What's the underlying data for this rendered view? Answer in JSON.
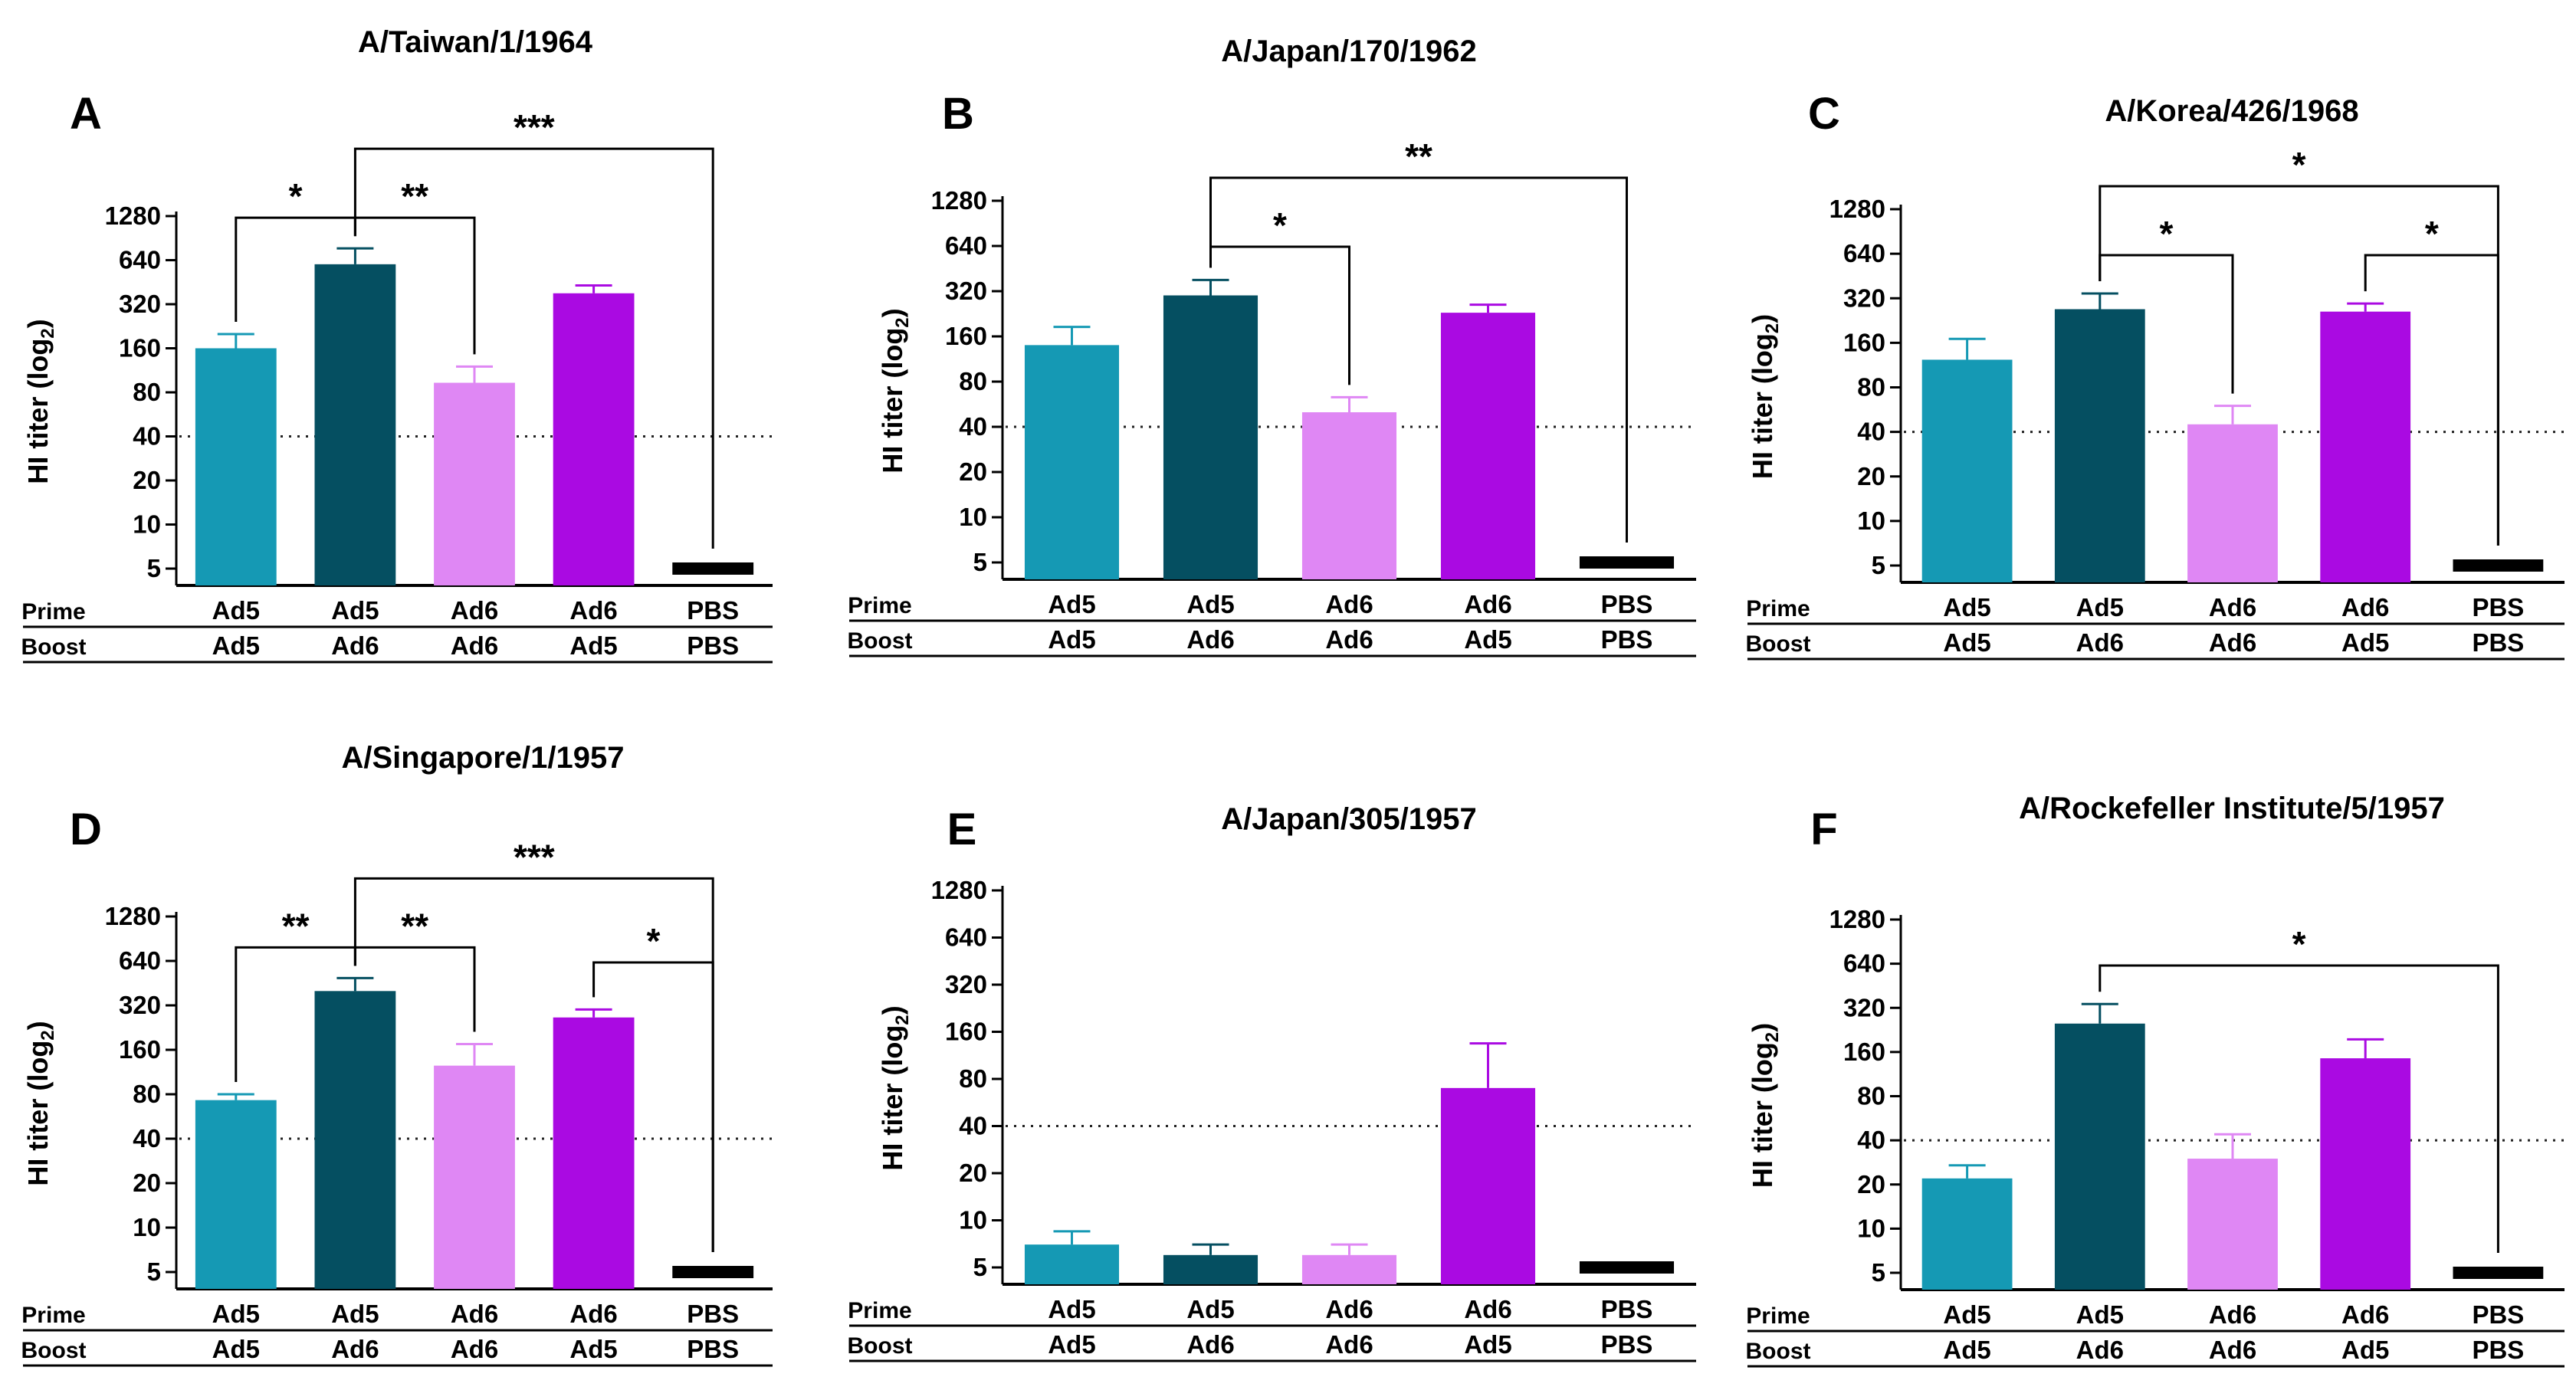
{
  "colors": {
    "Ad5/Ad5": "#1599b4",
    "Ad5/Ad6": "#054f61",
    "Ad6/Ad6": "#df87f4",
    "Ad6/Ad5": "#aa0ae2",
    "PBS/PBS": "#000000"
  },
  "common": {
    "ylabel": "HI titer (log",
    "ylabel_sub": "2",
    "ylabel_close": ")",
    "yticks": [
      "1280",
      "640",
      "320",
      "160",
      "80",
      "40",
      "20",
      "10",
      "5"
    ],
    "prime_label": "Prime",
    "boost_label": "Boost",
    "prime": [
      "Ad5",
      "Ad5",
      "Ad6",
      "Ad6",
      "PBS"
    ],
    "boost": [
      "Ad5",
      "Ad6",
      "Ad6",
      "Ad5",
      "PBS"
    ]
  },
  "chart_data": [
    {
      "type": "bar",
      "letter": "A",
      "title": "A/Taiwan/1/1964",
      "categories": [
        "Ad5/Ad5",
        "Ad5/Ad6",
        "Ad6/Ad6",
        "Ad6/Ad5",
        "PBS/PBS"
      ],
      "values": [
        160,
        600,
        93,
        380,
        5
      ],
      "errors": [
        200,
        770,
        120,
        430,
        5
      ],
      "yscale": "log2",
      "ylim": [
        5,
        1280
      ],
      "threshold": 40,
      "significance": [
        {
          "from": 0,
          "to": 1,
          "label": "*"
        },
        {
          "from": 1,
          "to": 2,
          "label": "**"
        },
        {
          "from": 1,
          "to": 4,
          "label": "***"
        }
      ]
    },
    {
      "type": "bar",
      "letter": "B",
      "title": "A/Japan/170/1962",
      "categories": [
        "Ad5/Ad5",
        "Ad5/Ad6",
        "Ad6/Ad6",
        "Ad6/Ad5",
        "PBS/PBS"
      ],
      "values": [
        140,
        300,
        50,
        230,
        5
      ],
      "errors": [
        185,
        380,
        63,
        260,
        5
      ],
      "yscale": "log2",
      "ylim": [
        5,
        1280
      ],
      "threshold": 40,
      "significance": [
        {
          "from": 1,
          "to": 2,
          "label": "*"
        },
        {
          "from": 1,
          "to": 4,
          "label": "**"
        }
      ]
    },
    {
      "type": "bar",
      "letter": "C",
      "title": "A/Korea/426/1968",
      "categories": [
        "Ad5/Ad5",
        "Ad5/Ad6",
        "Ad6/Ad6",
        "Ad6/Ad5",
        "PBS/PBS"
      ],
      "values": [
        123,
        270,
        45,
        260,
        5
      ],
      "errors": [
        170,
        345,
        60,
        295,
        5
      ],
      "yscale": "log2",
      "ylim": [
        5,
        1280
      ],
      "threshold": 40,
      "significance": [
        {
          "from": 1,
          "to": 2,
          "label": "*"
        },
        {
          "from": 3,
          "to": 4,
          "label": "*"
        },
        {
          "from": 1,
          "to": 4,
          "label": "*"
        }
      ]
    },
    {
      "type": "bar",
      "letter": "D",
      "title": "A/Singapore/1/1957",
      "categories": [
        "Ad5/Ad5",
        "Ad5/Ad6",
        "Ad6/Ad6",
        "Ad6/Ad5",
        "PBS/PBS"
      ],
      "values": [
        73,
        400,
        125,
        265,
        5
      ],
      "errors": [
        80,
        490,
        175,
        300,
        5
      ],
      "yscale": "log2",
      "ylim": [
        5,
        1280
      ],
      "threshold": 40,
      "significance": [
        {
          "from": 0,
          "to": 1,
          "label": "**"
        },
        {
          "from": 1,
          "to": 2,
          "label": "**"
        },
        {
          "from": 3,
          "to": 4,
          "label": "*"
        },
        {
          "from": 1,
          "to": 4,
          "label": "***"
        }
      ]
    },
    {
      "type": "bar",
      "letter": "E",
      "title": "A/Japan/305/1957",
      "categories": [
        "Ad5/Ad5",
        "Ad5/Ad6",
        "Ad6/Ad6",
        "Ad6/Ad5",
        "PBS/PBS"
      ],
      "values": [
        7,
        6,
        6,
        70,
        5
      ],
      "errors": [
        8.5,
        7,
        7,
        135,
        5
      ],
      "yscale": "log2",
      "ylim": [
        5,
        1280
      ],
      "threshold": 40,
      "significance": []
    },
    {
      "type": "bar",
      "letter": "F",
      "title": "A/Rockefeller Institute/5/1957",
      "categories": [
        "Ad5/Ad5",
        "Ad5/Ad6",
        "Ad6/Ad6",
        "Ad6/Ad5",
        "PBS/PBS"
      ],
      "values": [
        22,
        250,
        30,
        145,
        5
      ],
      "errors": [
        27,
        340,
        44,
        195,
        5
      ],
      "yscale": "log2",
      "ylim": [
        5,
        1280
      ],
      "threshold": 40,
      "significance": [
        {
          "from": 1,
          "to": 4,
          "label": "*"
        }
      ]
    }
  ]
}
